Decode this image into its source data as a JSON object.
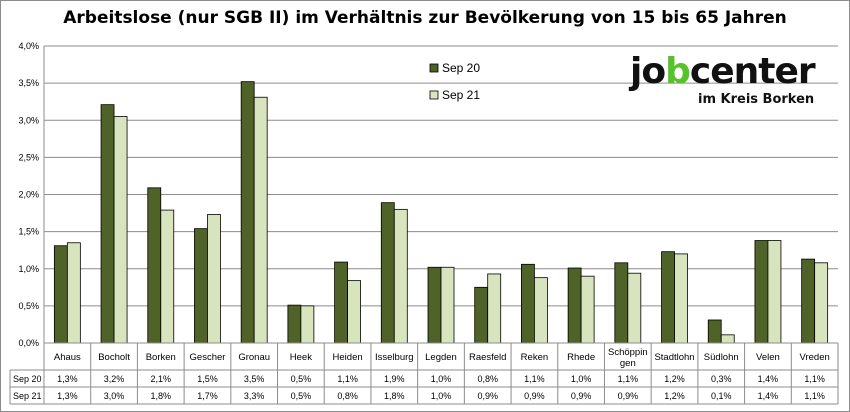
{
  "chart_data": {
    "type": "bar",
    "title": "Arbeitslose (nur SGB II) im Verhältnis zur Bevölkerung von 15 bis 65 Jahren",
    "categories": [
      "Ahaus",
      "Bocholt",
      "Borken",
      "Gescher",
      "Gronau",
      "Heek",
      "Heiden",
      "Isselburg",
      "Legden",
      "Raesfeld",
      "Reken",
      "Rhede",
      "Schöppin gen",
      "Stadtlohn",
      "Südlohn",
      "Velen",
      "Vreden"
    ],
    "series": [
      {
        "name": "Sep 20",
        "color": "#4f6228",
        "values": [
          1.31,
          3.21,
          2.09,
          1.54,
          3.52,
          0.51,
          1.09,
          1.89,
          1.02,
          0.75,
          1.06,
          1.01,
          1.08,
          1.23,
          0.31,
          1.38,
          1.13
        ],
        "labels": [
          "1,3%",
          "3,2%",
          "2,1%",
          "1,5%",
          "3,5%",
          "0,5%",
          "1,1%",
          "1,9%",
          "1,0%",
          "0,8%",
          "1,1%",
          "1,0%",
          "1,1%",
          "1,2%",
          "0,3%",
          "1,4%",
          "1,1%"
        ]
      },
      {
        "name": "Sep 21",
        "color": "#d7e4bd",
        "values": [
          1.35,
          3.05,
          1.79,
          1.73,
          3.31,
          0.5,
          0.84,
          1.8,
          1.02,
          0.93,
          0.88,
          0.9,
          0.94,
          1.2,
          0.11,
          1.38,
          1.08
        ],
        "labels": [
          "1,3%",
          "3,0%",
          "1,8%",
          "1,7%",
          "3,3%",
          "0,5%",
          "0,8%",
          "1,8%",
          "1,0%",
          "0,9%",
          "0,9%",
          "0,9%",
          "0,9%",
          "1,2%",
          "0,1%",
          "1,4%",
          "1,1%"
        ]
      }
    ],
    "yticks": [
      "0,0%",
      "0,5%",
      "1,0%",
      "1,5%",
      "2,0%",
      "2,5%",
      "3,0%",
      "3,5%",
      "4,0%"
    ],
    "ylim": [
      0,
      4
    ],
    "grid": true,
    "legend_position": "top-right",
    "data_table": true
  },
  "logo": {
    "prefix": "jo",
    "accent": "b",
    "suffix": "center",
    "subtitle": "im Kreis Borken"
  }
}
